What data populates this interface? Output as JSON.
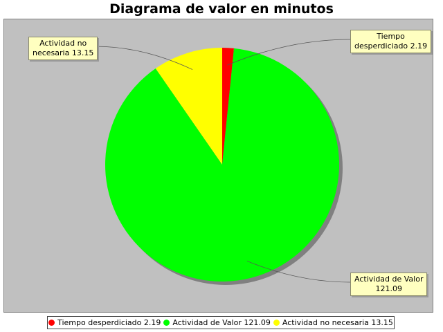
{
  "chart_data": {
    "type": "pie",
    "title": "Diagrama de valor en minutos",
    "slices": [
      {
        "label": "Tiempo desperdiciado",
        "value": 2.19,
        "color": "#ff0000",
        "label_line1": "Tiempo",
        "label_line2": "desperdiciado 2.19",
        "legend_text": "Tiempo desperdiciado 2.19"
      },
      {
        "label": "Actividad de Valor",
        "value": 121.09,
        "color": "#00ff00",
        "label_line1": "Actividad de Valor",
        "label_line2": "121.09",
        "legend_text": "Actividad de Valor 121.09"
      },
      {
        "label": "Actividad no necesaria",
        "value": 13.15,
        "color": "#ffff00",
        "label_line1": "Actividad no",
        "label_line2": "necesaria 13.15",
        "legend_text": "Actividad no necesaria 13.15"
      }
    ],
    "background_color": "#c0c0c0",
    "legend_position": "bottom"
  }
}
